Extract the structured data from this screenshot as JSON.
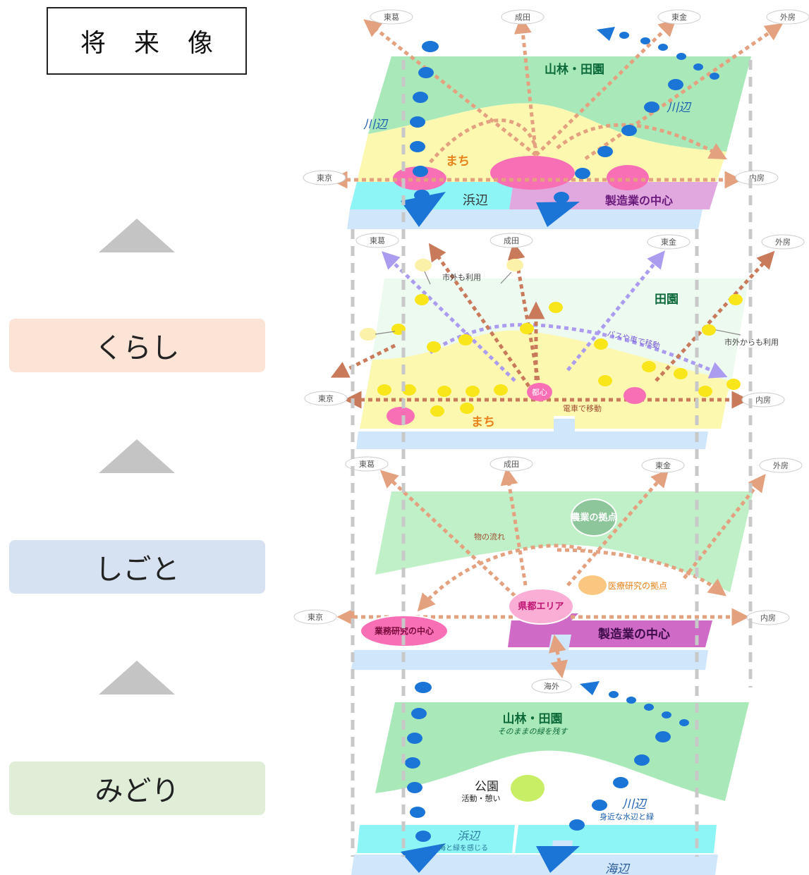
{
  "title": "将来像",
  "layers": [
    {
      "label": "くらし",
      "color": "#fbe3d6"
    },
    {
      "label": "しごと",
      "color": "#d6e1f1"
    },
    {
      "label": "みどり",
      "color": "#e0eed8"
    }
  ],
  "colors": {
    "forest": "#a9e9b9",
    "town": "#fdf8b0",
    "beach": "#8ef5f7",
    "sea": "#cfe6fb",
    "industry": "#e1a8e0",
    "pink": "#f86fb6",
    "dot": "#1b75d6",
    "arrow": "#e4a17f",
    "yellow": "#f8e51a",
    "purple": "#ab9cf0"
  },
  "top": {
    "destinations": [
      "東葛",
      "成田",
      "東金",
      "外房",
      "東京",
      "内房"
    ],
    "forest": "山林・田園",
    "river_left": "川辺",
    "river_right": "川辺",
    "town": "まち",
    "beach": "浜辺",
    "industry": "製造業の中心"
  },
  "kurashi": {
    "destinations": [
      "東葛",
      "成田",
      "東金",
      "外房",
      "東京",
      "内房"
    ],
    "countryside": "田園",
    "outside_use_top": "市外も利用",
    "outside_use_right": "市外からも利用",
    "bus": "バスや車で移動",
    "center": "都心",
    "train": "電車で移動",
    "town": "まち"
  },
  "shigoto": {
    "destinations": [
      "東葛",
      "成田",
      "東金",
      "外房",
      "東京",
      "内房"
    ],
    "agri": "農業の拠点",
    "flow": "物の流れ",
    "medical": "医療研究の拠点",
    "capital": "県都エリア",
    "business": "業務研究の中心",
    "industry": "製造業の中心"
  },
  "midori": {
    "overseas": "海外",
    "forest": "山林・田園",
    "forest_sub": "そのままの緑を残す",
    "park": "公園",
    "park_sub": "活動・憩い",
    "river": "川辺",
    "river_sub": "身近な水辺と緑",
    "beach": "浜辺",
    "beach_sub": "海と緑を感じる",
    "sea": "海辺"
  }
}
